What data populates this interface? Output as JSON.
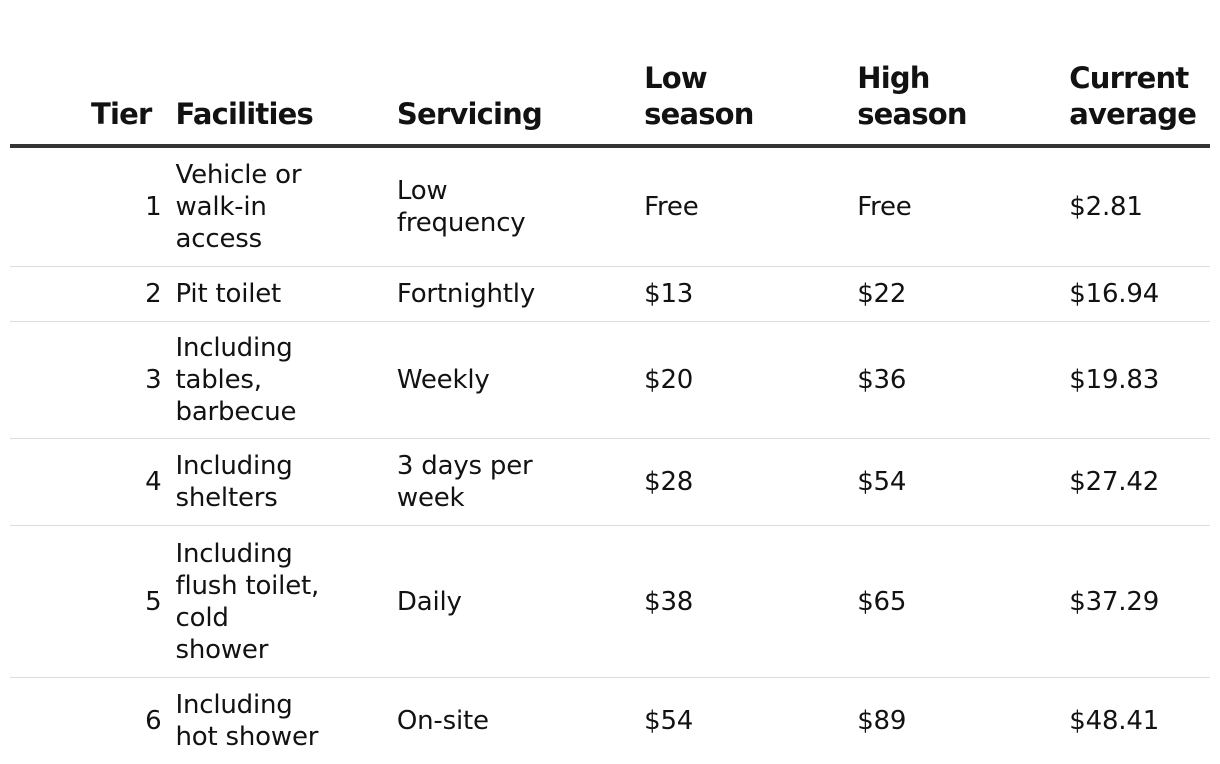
{
  "table": {
    "headers": {
      "tier": "Tier",
      "facilities": "Facilities",
      "servicing": "Servicing",
      "low_season": [
        "Low",
        "season"
      ],
      "high_season": [
        "High",
        "season"
      ],
      "current_average": [
        "Current",
        "average"
      ]
    },
    "rows": [
      {
        "tier": "1",
        "facilities": [
          "Vehicle or",
          "walk-in",
          "access"
        ],
        "servicing": [
          "Low",
          "frequency"
        ],
        "low": "Free",
        "high": "Free",
        "average": "$2.81"
      },
      {
        "tier": "2",
        "facilities": [
          "Pit toilet"
        ],
        "servicing": [
          "Fortnightly"
        ],
        "low": "$13",
        "high": "$22",
        "average": "$16.94"
      },
      {
        "tier": "3",
        "facilities": [
          "Including",
          "tables,",
          "barbecue"
        ],
        "servicing": [
          "Weekly"
        ],
        "low": "$20",
        "high": "$36",
        "average": "$19.83"
      },
      {
        "tier": "4",
        "facilities": [
          "Including",
          "shelters"
        ],
        "servicing": [
          "3 days per",
          "week"
        ],
        "low": "$28",
        "high": "$54",
        "average": "$27.42"
      },
      {
        "tier": "5",
        "facilities": [
          "Including",
          "flush toilet,",
          "cold",
          "shower"
        ],
        "servicing": [
          "Daily"
        ],
        "low": "$38",
        "high": "$65",
        "average": "$37.29"
      },
      {
        "tier": "6",
        "facilities": [
          "Including",
          "hot shower"
        ],
        "servicing": [
          "On-site"
        ],
        "low": "$54",
        "high": "$89",
        "average": "$48.41"
      }
    ]
  },
  "colors": {
    "text": "#121212",
    "header_rule": "#333333",
    "row_rule": "#dcdcdc",
    "background": "#ffffff"
  }
}
